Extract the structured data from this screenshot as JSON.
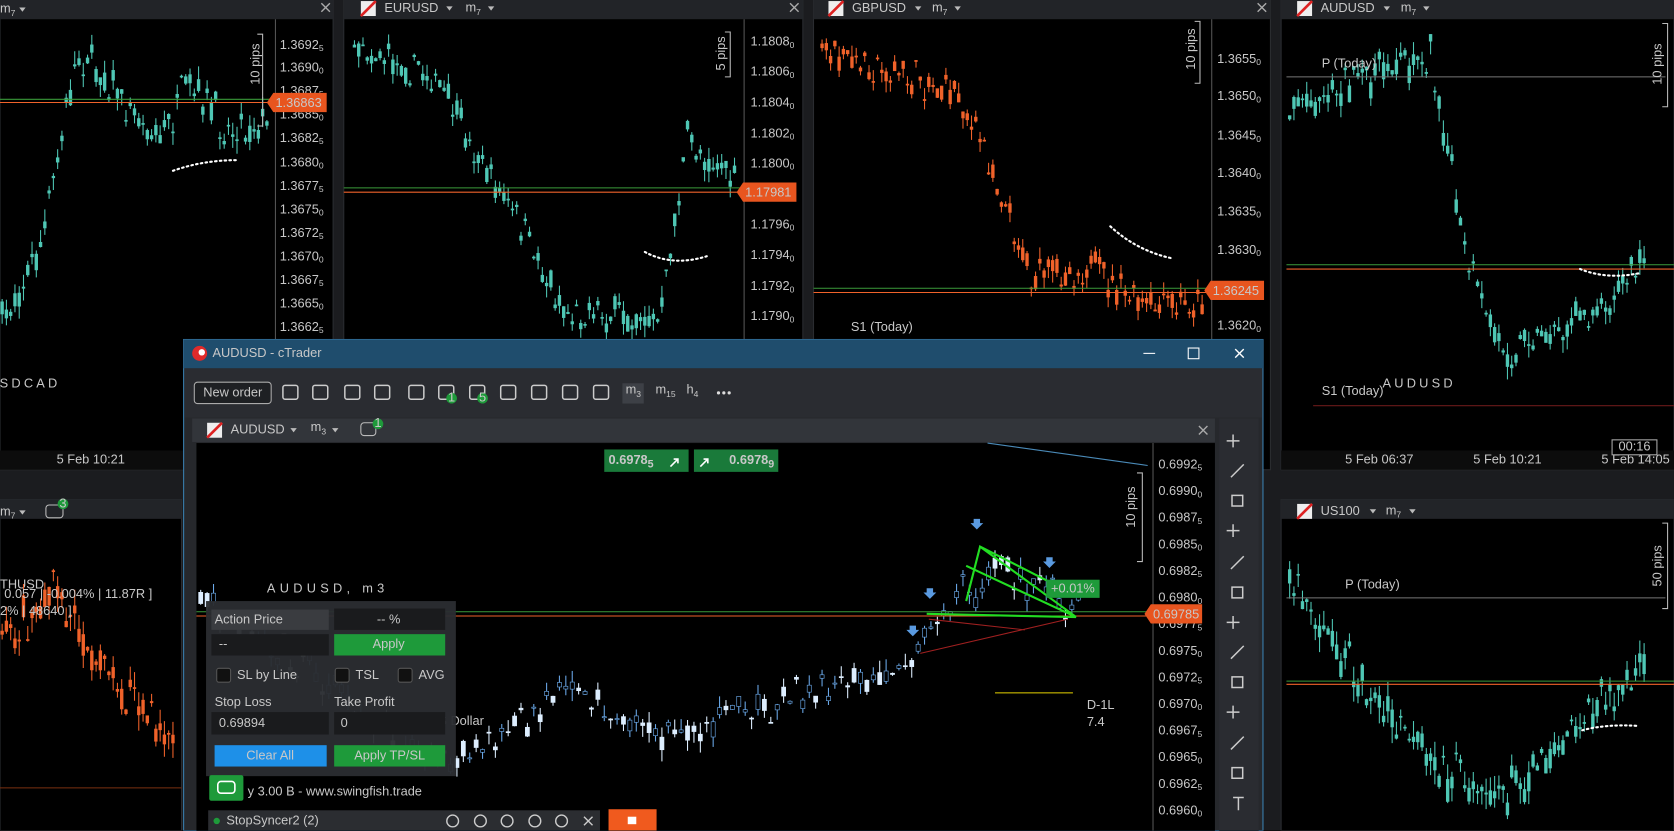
{
  "panels": {
    "usdcad": {
      "timeframe": {
        "unit": "m",
        "num": "7"
      },
      "ticks": [
        [
          "1.3692",
          "5"
        ],
        [
          "1.3690",
          "0"
        ],
        [
          "1.3687",
          "5"
        ],
        [
          "1.3685",
          "0"
        ],
        [
          "1.3682",
          "5"
        ],
        [
          "1.3680",
          "0"
        ],
        [
          "1.3677",
          "5"
        ],
        [
          "1.3675",
          "0"
        ],
        [
          "1.3672",
          "5"
        ],
        [
          "1.3670",
          "0"
        ],
        [
          "1.3667",
          "5"
        ],
        [
          "1.3665",
          "0"
        ],
        [
          "1.3662",
          "5"
        ]
      ],
      "price": "1.36863",
      "pips": "10 pips",
      "watermark": "USDCAD",
      "date": "5 Feb 10:21"
    },
    "eurusd": {
      "symbol": "EURUSD",
      "timeframe": {
        "unit": "m",
        "num": "7"
      },
      "ticks": [
        [
          "1.1808",
          "0"
        ],
        [
          "1.1806",
          "0"
        ],
        [
          "1.1804",
          "0"
        ],
        [
          "1.1802",
          "0"
        ],
        [
          "1.1800",
          "0"
        ],
        [
          "1.1798",
          "0"
        ],
        [
          "1.1796",
          "0"
        ],
        [
          "1.1794",
          "0"
        ],
        [
          "1.1792",
          "0"
        ],
        [
          "1.1790",
          "0"
        ]
      ],
      "price": "1.17981",
      "pips": "5 pips"
    },
    "gbpusd": {
      "symbol": "GBPUSD",
      "timeframe": {
        "unit": "m",
        "num": "7"
      },
      "ticks": [
        [
          "1.3655",
          "0"
        ],
        [
          "1.3650",
          "0"
        ],
        [
          "1.3645",
          "0"
        ],
        [
          "1.3640",
          "0"
        ],
        [
          "1.3635",
          "0"
        ],
        [
          "1.3630",
          "0"
        ],
        [
          "1.3625",
          "0"
        ],
        [
          "1.3620",
          "0"
        ]
      ],
      "price": "1.36245",
      "pips": "10 pips",
      "pivot": "S1 (Today)"
    },
    "audusd": {
      "symbol": "AUDUSD",
      "timeframe": {
        "unit": "m",
        "num": "7"
      },
      "pivot_p": "P (Today)",
      "pivot_s": "S1 (Today)",
      "watermark": "AUDUSD",
      "dates": [
        "5 Feb 06:37",
        "5 Feb 10:21",
        "5 Feb 14:05"
      ],
      "countdown": "00:16",
      "pips": "10 pips"
    },
    "us100": {
      "symbol": "US100",
      "timeframe": {
        "unit": "m",
        "num": "7"
      },
      "pivot": "P (Today)",
      "pips": "50 pips"
    },
    "left_bottom": {
      "timeframe": {
        "unit": "m",
        "num": "7"
      },
      "badge": "3",
      "stats": [
        "0.057 | -0.004% | 11.87R ]",
        "2% | 48640 ]"
      ],
      "watermark": "THUSD"
    }
  },
  "window": {
    "title": "AUDUSD - cTrader",
    "new_order": "New order",
    "badges": [
      "1",
      "5"
    ],
    "timeframes": [
      {
        "unit": "m",
        "num": "3"
      },
      {
        "unit": "m",
        "num": "15"
      },
      {
        "unit": "h",
        "num": "4"
      }
    ]
  },
  "chart": {
    "symbol": "AUDUSD",
    "timeframe": {
      "unit": "m",
      "num": "3"
    },
    "bot_badge": "1",
    "sell": [
      "0.6978",
      "5"
    ],
    "buy": [
      "0.6978",
      "9"
    ],
    "ticks": [
      [
        "0.6992",
        "5"
      ],
      [
        "0.6990",
        "0"
      ],
      [
        "0.6987",
        "5"
      ],
      [
        "0.6985",
        "0"
      ],
      [
        "0.6982",
        "5"
      ],
      [
        "0.6980",
        "0"
      ],
      [
        "0.6977",
        "5"
      ],
      [
        "0.6975",
        "0"
      ],
      [
        "0.6972",
        "5"
      ],
      [
        "0.6970",
        "0"
      ],
      [
        "0.6967",
        "5"
      ],
      [
        "0.6965",
        "0"
      ],
      [
        "0.6962",
        "5"
      ],
      [
        "0.6960",
        "0"
      ]
    ],
    "price": "0.69785",
    "pips": "10 pips",
    "watermark": "AUDUSD, m3",
    "watermark_sub": "Australian vs US Dollar",
    "change": "+0.01%",
    "level": "D-1L",
    "level_value": "7.4",
    "footer": "y 3.00 B - www.swingfish.trade"
  },
  "trade_panel": {
    "action_price": "Action Price",
    "percent": "-- %",
    "action_input": "--",
    "apply": "Apply",
    "sl_by_line": "SL by Line",
    "tsl": "TSL",
    "avg": "AVG",
    "stop_loss": "Stop Loss",
    "take_profit": "Take Profit",
    "stop_loss_value": "0.69894",
    "take_profit_value": "0",
    "clear_all": "Clear All",
    "apply_tpsl": "Apply TP/SL"
  },
  "bot_bar": {
    "name": "StopSyncer2 (2)"
  }
}
